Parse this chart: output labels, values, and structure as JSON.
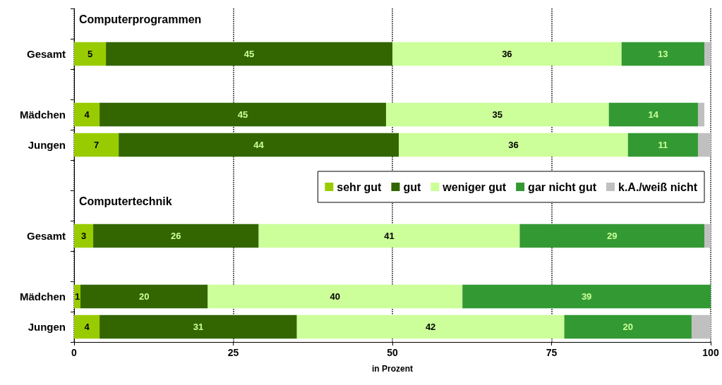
{
  "chart_data": {
    "type": "bar",
    "orientation": "horizontal",
    "stacked": true,
    "categories": [
      null,
      "Gesamt",
      null,
      "Mädchen",
      "Jungen",
      null,
      null,
      "Gesamt",
      null,
      "Mädchen",
      "Jungen"
    ],
    "series": [
      {
        "name": "sehr gut",
        "color": "#99cc00",
        "values": [
          null,
          5,
          null,
          4,
          7,
          null,
          null,
          3,
          null,
          1,
          4
        ],
        "value_labels": [
          null,
          "5",
          null,
          "4",
          "7",
          null,
          null,
          "3",
          null,
          "1",
          "4"
        ]
      },
      {
        "name": "gut",
        "color": "#336600",
        "values": [
          null,
          45,
          null,
          45,
          44,
          null,
          null,
          26,
          null,
          20,
          31
        ],
        "value_labels": [
          null,
          "45",
          null,
          "45",
          "44",
          null,
          null,
          "26",
          null,
          "20",
          "31"
        ]
      },
      {
        "name": "weniger gut",
        "color": "#ccff99",
        "values": [
          null,
          36,
          null,
          35,
          36,
          null,
          null,
          41,
          null,
          40,
          42
        ],
        "value_labels": [
          null,
          "36",
          null,
          "35",
          "36",
          null,
          null,
          "41",
          null,
          "40",
          "42"
        ]
      },
      {
        "name": "gar nicht gut",
        "color": "#339933",
        "values": [
          null,
          13,
          null,
          14,
          11,
          null,
          null,
          29,
          null,
          39,
          20
        ],
        "value_labels": [
          null,
          "13",
          null,
          "14",
          "11",
          null,
          null,
          "29",
          null,
          "39",
          "20"
        ]
      },
      {
        "name": "k.A./weiß nicht",
        "color": "#c0c0c0",
        "values": [
          null,
          1,
          null,
          1,
          2,
          null,
          null,
          1,
          null,
          null,
          3
        ],
        "value_labels": [
          null,
          null,
          null,
          null,
          null,
          null,
          null,
          null,
          null,
          null,
          null
        ]
      }
    ],
    "xlim": [
      0,
      100
    ],
    "xticks": [
      0,
      25,
      50,
      75,
      100
    ],
    "grid": "x",
    "legend": "right",
    "xlabel": "in Prozent",
    "annotations": [
      "Computerprogrammen",
      "Computertechnik"
    ]
  }
}
